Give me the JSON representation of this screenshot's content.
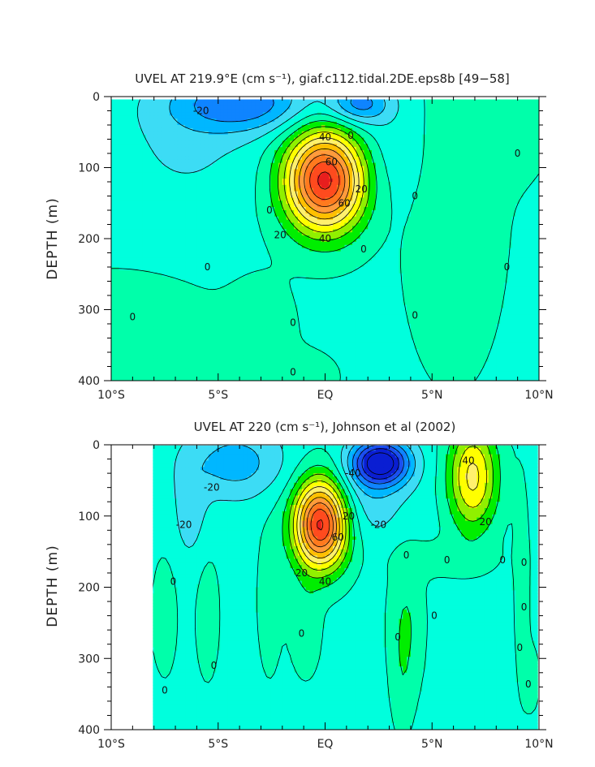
{
  "chart_data": [
    {
      "type": "heatmap",
      "title": "UVEL AT 219.9°E (cm s⁻¹), giaf.c112.tidal.2DE.eps8b [49−58]",
      "xlabel": "",
      "ylabel": "DEPTH (m)",
      "x_tick_labels": [
        "10°S",
        "5°S",
        "EQ",
        "5°N",
        "10°N"
      ],
      "y_tick_labels": [
        "0",
        "100",
        "200",
        "300",
        "400"
      ],
      "xlim": [
        -10,
        10
      ],
      "ylim": [
        400,
        0
      ],
      "contour_interval": 10,
      "contour_labels": [
        {
          "x": -5.8,
          "y": 20,
          "text": "-20"
        },
        {
          "x": 0.0,
          "y": 57,
          "text": "40"
        },
        {
          "x": 0.3,
          "y": 92,
          "text": "60"
        },
        {
          "x": 0.9,
          "y": 150,
          "text": "60"
        },
        {
          "x": 1.7,
          "y": 130,
          "text": "20"
        },
        {
          "x": 1.2,
          "y": 55,
          "text": "0"
        },
        {
          "x": -2.6,
          "y": 160,
          "text": "0"
        },
        {
          "x": -2.1,
          "y": 195,
          "text": "20"
        },
        {
          "x": 0.0,
          "y": 200,
          "text": "40"
        },
        {
          "x": 1.8,
          "y": 215,
          "text": "0"
        },
        {
          "x": -5.5,
          "y": 240,
          "text": "0"
        },
        {
          "x": -9.0,
          "y": 310,
          "text": "0"
        },
        {
          "x": -1.5,
          "y": 318,
          "text": "0"
        },
        {
          "x": -1.5,
          "y": 388,
          "text": "0"
        },
        {
          "x": 4.2,
          "y": 140,
          "text": "0"
        },
        {
          "x": 4.2,
          "y": 308,
          "text": "0"
        },
        {
          "x": 8.5,
          "y": 240,
          "text": "0"
        },
        {
          "x": 9.0,
          "y": 80,
          "text": "0"
        }
      ],
      "features": [
        {
          "kind": "maximum",
          "x": 0.0,
          "y": 115,
          "value": 90
        },
        {
          "kind": "minimum",
          "x": -3.5,
          "y": 10,
          "value": -35
        },
        {
          "kind": "minimum",
          "x": 1.5,
          "y": 12,
          "value": -32
        }
      ]
    },
    {
      "type": "heatmap",
      "title": "UVEL AT 220 (cm s⁻¹), Johnson et al (2002)",
      "xlabel": "",
      "ylabel": "DEPTH (m)",
      "x_tick_labels": [
        "10°S",
        "5°S",
        "EQ",
        "5°N",
        "10°N"
      ],
      "y_tick_labels": [
        "0",
        "100",
        "200",
        "300",
        "400"
      ],
      "xlim": [
        -10,
        10
      ],
      "ylim": [
        400,
        0
      ],
      "contour_interval": 10,
      "contour_labels": [
        {
          "x": -5.3,
          "y": 60,
          "text": "-20"
        },
        {
          "x": -6.6,
          "y": 112,
          "text": "-20"
        },
        {
          "x": 1.3,
          "y": 40,
          "text": "-40"
        },
        {
          "x": 2.5,
          "y": 112,
          "text": "-20"
        },
        {
          "x": 1.1,
          "y": 100,
          "text": "20"
        },
        {
          "x": 0.6,
          "y": 130,
          "text": "60"
        },
        {
          "x": -1.1,
          "y": 180,
          "text": "20"
        },
        {
          "x": 0.0,
          "y": 192,
          "text": "40"
        },
        {
          "x": 6.7,
          "y": 22,
          "text": "40"
        },
        {
          "x": 7.5,
          "y": 108,
          "text": "20"
        },
        {
          "x": -7.1,
          "y": 192,
          "text": "0"
        },
        {
          "x": -5.2,
          "y": 310,
          "text": "0"
        },
        {
          "x": -1.1,
          "y": 265,
          "text": "0"
        },
        {
          "x": 3.4,
          "y": 270,
          "text": "0"
        },
        {
          "x": 5.1,
          "y": 240,
          "text": "0"
        },
        {
          "x": 3.8,
          "y": 155,
          "text": "0"
        },
        {
          "x": 5.7,
          "y": 162,
          "text": "0"
        },
        {
          "x": 9.3,
          "y": 165,
          "text": "0"
        },
        {
          "x": 9.3,
          "y": 228,
          "text": "0"
        },
        {
          "x": 9.1,
          "y": 285,
          "text": "0"
        },
        {
          "x": 9.5,
          "y": 336,
          "text": "0"
        },
        {
          "x": 8.3,
          "y": 162,
          "text": "0"
        },
        {
          "x": -7.5,
          "y": 345,
          "text": "0"
        }
      ],
      "features": [
        {
          "kind": "maximum",
          "x": -0.2,
          "y": 108,
          "value": 95
        },
        {
          "kind": "minimum",
          "x": 2.6,
          "y": 25,
          "value": -65
        },
        {
          "kind": "maximum",
          "x": 6.8,
          "y": 45,
          "value": 45
        }
      ]
    }
  ],
  "colors": {
    "c_lt50": "#0a1ed2",
    "c_m50": "#1b4ff0",
    "c_m40": "#0f84ff",
    "c_m30": "#00b7ff",
    "c_m20": "#3cdcf5",
    "c_m10": "#00ffdd",
    "c_0": "#00ffaa",
    "c_10": "#00ee00",
    "c_20": "#90f000",
    "c_30": "#ffff00",
    "c_40": "#fff06e",
    "c_50": "#ffc000",
    "c_60": "#ff9b3c",
    "c_70": "#ff7a1e",
    "c_80": "#ff4b1e",
    "c_90": "#e81e1e",
    "c_100": "#be0f0f",
    "contour_line": "#000000",
    "frame": "#000000",
    "text": "#222222"
  }
}
